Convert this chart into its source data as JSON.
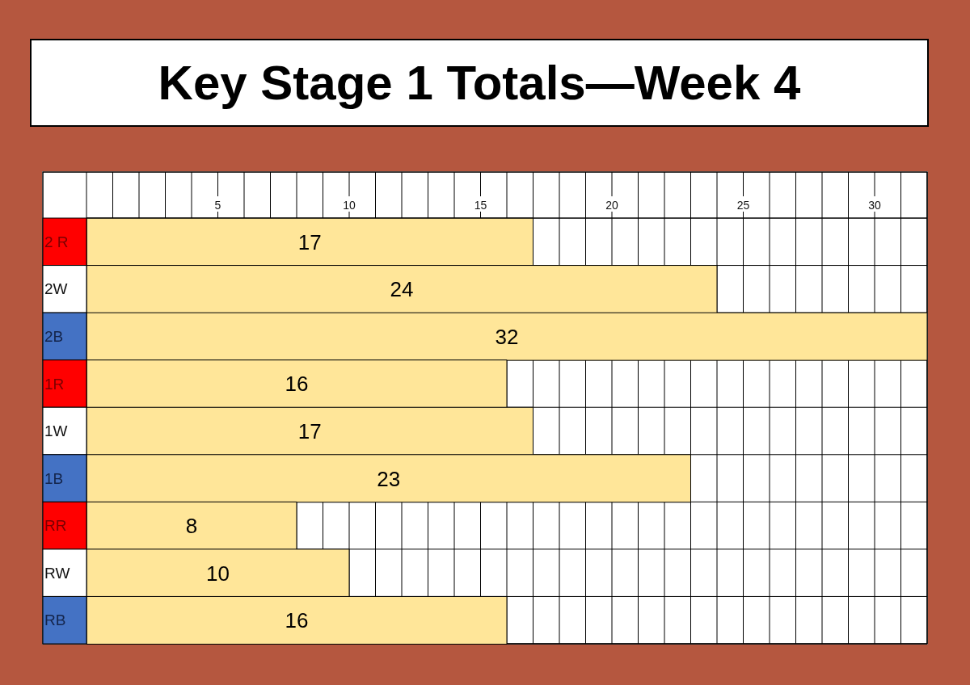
{
  "chart_data": {
    "type": "bar",
    "orientation": "horizontal",
    "title": "Key Stage 1 Totals—Week 4",
    "categories": [
      "2 R",
      "2W",
      "2B",
      "1R",
      "1W",
      "1B",
      "RR",
      "RW",
      "RB"
    ],
    "values": [
      17,
      24,
      32,
      16,
      17,
      23,
      8,
      10,
      16
    ],
    "color": "#ffe699",
    "xlim": [
      0,
      32
    ],
    "xticks": [
      {
        "value": 0,
        "label": null
      },
      {
        "value": 1,
        "label": null
      },
      {
        "value": 2,
        "label": null
      },
      {
        "value": 3,
        "label": null
      },
      {
        "value": 4,
        "label": null
      },
      5,
      {
        "value": 6,
        "label": null
      },
      {
        "value": 7,
        "label": null
      },
      {
        "value": 8,
        "label": null
      },
      {
        "value": 9,
        "label": null
      },
      10,
      {
        "value": 11,
        "label": null
      },
      {
        "value": 12,
        "label": null
      },
      {
        "value": 13,
        "label": null
      },
      {
        "value": 14,
        "label": null
      },
      15,
      {
        "value": 16,
        "label": null
      },
      {
        "value": 17,
        "label": null
      },
      {
        "value": 18,
        "label": null
      },
      {
        "value": 19,
        "label": null
      },
      20,
      {
        "value": 21,
        "label": null
      },
      {
        "value": 22,
        "label": null
      },
      {
        "value": 23,
        "label": null
      },
      {
        "value": 24,
        "label": null
      },
      25,
      {
        "value": 26,
        "label": null
      },
      {
        "value": 27,
        "label": null
      },
      {
        "value": 28,
        "label": null
      },
      {
        "value": 29,
        "label": null
      },
      30,
      {
        "value": 31,
        "label": null
      },
      {
        "value": 32,
        "label": null
      }
    ],
    "grid": true,
    "data_labels": true
  }
}
